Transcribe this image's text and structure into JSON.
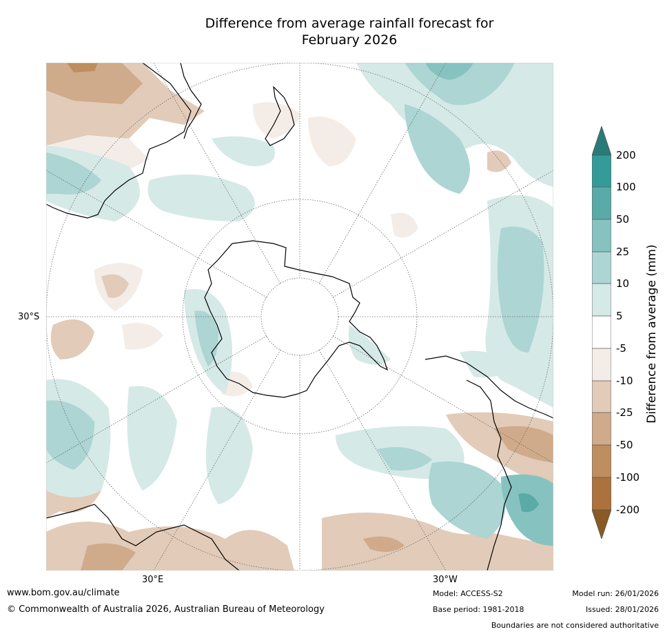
{
  "title_line1": "Difference from average rainfall forecast for",
  "title_line2": "February 2026",
  "map_labels": {
    "lat": "30°S",
    "lon_east": "30°E",
    "lon_west": "30°W"
  },
  "legend": {
    "title": "Difference from average (mm)",
    "levels": [
      "200",
      "100",
      "50",
      "25",
      "10",
      "5",
      "-5",
      "-10",
      "-25",
      "-50",
      "-100",
      "-200"
    ],
    "colors": {
      "wet_extreme": "#2a7b78",
      "wet_200": "#349c98",
      "wet_100": "#5aaaa7",
      "wet_50": "#86c3c0",
      "wet_25": "#acd5d3",
      "wet_10": "#d5e9e7",
      "neutral": "#ffffff",
      "dry_5": "#f4ece6",
      "dry_10": "#e2cbb8",
      "dry_25": "#cfab8b",
      "dry_50": "#be8d60",
      "dry_100": "#ab723e",
      "dry_extreme": "#8a5a25"
    }
  },
  "footer": {
    "website": "www.bom.gov.au/climate",
    "copyright": "© Commonwealth of Australia 2026, Australian Bureau of Meteorology",
    "model": "Model: ACCESS-S2",
    "base_period": "Base period: 1981-2018",
    "model_run": "Model run: 26/01/2026",
    "issued": "Issued: 28/01/2026",
    "disclaimer": "Boundaries are not considered authoritative"
  }
}
